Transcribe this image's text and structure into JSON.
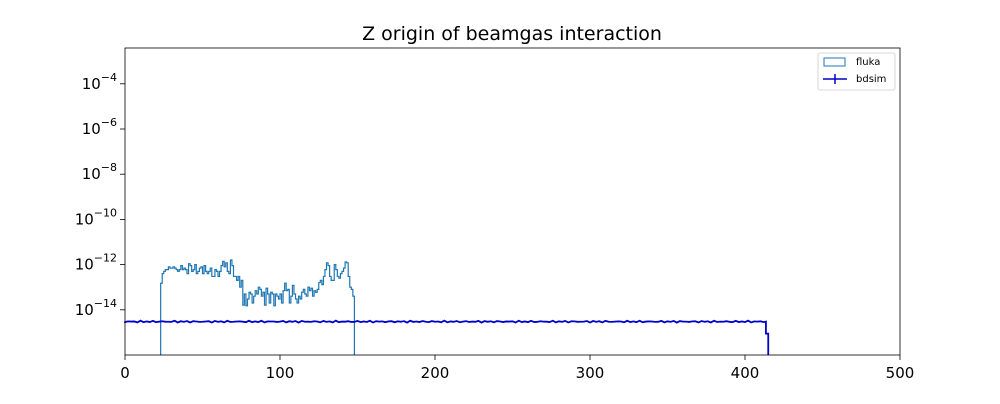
{
  "chart_data": {
    "type": "histogram",
    "title": "Z origin of beamgas interaction",
    "xlabel": "",
    "ylabel": "",
    "xlim": [
      0,
      500
    ],
    "ylim": [
      1e-16,
      0.001
    ],
    "yscale": "log",
    "xticks": [
      0,
      100,
      200,
      300,
      400,
      500
    ],
    "yticks": [
      {
        "exp": -4,
        "label": "10",
        "sup": "−4"
      },
      {
        "exp": -6,
        "label": "10",
        "sup": "−6"
      },
      {
        "exp": -8,
        "label": "10",
        "sup": "−8"
      },
      {
        "exp": -10,
        "label": "10",
        "sup": "−10"
      },
      {
        "exp": -12,
        "label": "10",
        "sup": "−12"
      },
      {
        "exp": -14,
        "label": "10",
        "sup": "−14"
      }
    ],
    "grid": false,
    "legend_position": "top-right",
    "series": [
      {
        "name": "fluka",
        "style": "step",
        "color": "#1f77b4",
        "x_range": [
          23,
          148
        ],
        "bin_width": 1,
        "values": [
          1.5e-13,
          4e-13,
          5e-13,
          6e-13,
          6e-13,
          8e-13,
          7e-13,
          7e-13,
          8e-13,
          7e-13,
          6e-13,
          5e-13,
          6e-13,
          9e-13,
          6e-13,
          7e-13,
          6e-13,
          4e-13,
          1.1e-12,
          9e-13,
          5e-13,
          6e-13,
          1e-12,
          4e-13,
          5e-13,
          7e-13,
          8e-13,
          4e-13,
          9e-13,
          5e-13,
          4e-13,
          5e-13,
          7e-13,
          3e-13,
          3e-13,
          6e-13,
          5e-13,
          3e-13,
          5e-13,
          9e-13,
          1.4e-12,
          8e-13,
          1.2e-12,
          5e-13,
          4e-13,
          1.6e-12,
          9e-13,
          3e-13,
          3e-13,
          2e-13,
          3e-13,
          1e-13,
          2e-13,
          1.6e-14,
          5e-14,
          1.5e-14,
          3e-14,
          6e-14,
          5e-14,
          2e-14,
          4e-14,
          7e-14,
          5e-14,
          1e-13,
          8e-14,
          4e-14,
          6e-14,
          1.6e-14,
          9e-14,
          5e-14,
          2e-14,
          6e-14,
          5e-14,
          1.5e-14,
          5e-14,
          4e-14,
          3e-14,
          5e-14,
          2e-14,
          7e-14,
          1.5e-13,
          7e-14,
          8e-14,
          2e-14,
          4e-14,
          1.2e-13,
          5e-14,
          3e-14,
          2e-14,
          4e-14,
          3e-14,
          6e-14,
          8e-14,
          5e-14,
          4e-14,
          1e-13,
          7e-14,
          9e-14,
          4e-14,
          7e-14,
          6e-14,
          8e-14,
          1.6e-13,
          2e-13,
          1.3e-13,
          3e-13,
          6e-13,
          1.2e-12,
          9e-13,
          3e-13,
          2e-13,
          2e-13,
          1e-12,
          6e-13,
          3e-13,
          2.5e-13,
          4e-13,
          5e-13,
          7e-13,
          1.3e-12,
          1.2e-12,
          3e-13,
          1e-13,
          8e-14,
          4e-14
        ]
      },
      {
        "name": "bdsim",
        "style": "step-errorbar",
        "color": "#0000cc",
        "x_range": [
          0,
          415
        ],
        "level": 3e-15,
        "drop_at": 413.5
      }
    ]
  }
}
